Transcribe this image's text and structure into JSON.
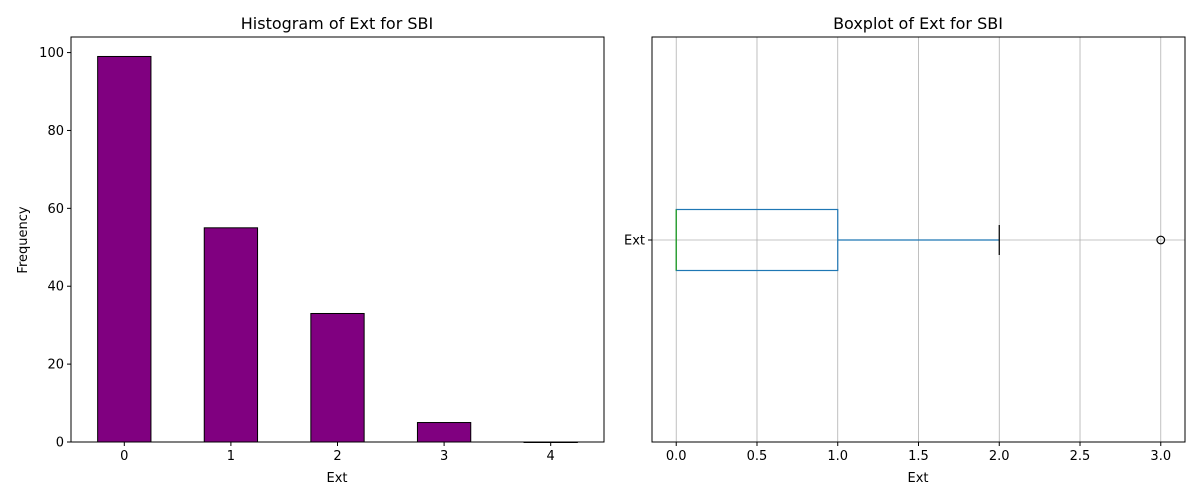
{
  "chart_data": [
    {
      "type": "bar",
      "title": "Histogram of Ext for SBI",
      "xlabel": "Ext",
      "ylabel": "Frequency",
      "categories": [
        "0",
        "1",
        "2",
        "3",
        "4"
      ],
      "values": [
        99,
        55,
        33,
        5,
        0
      ],
      "ylim": [
        0,
        104
      ],
      "yticks": [
        0,
        20,
        40,
        60,
        80,
        100
      ],
      "bar_color": "#800080",
      "edge_color": "#000000",
      "grid": false
    },
    {
      "type": "boxplot",
      "title": "Boxplot of Ext for SBI",
      "xlabel": "Ext",
      "ylabel": "",
      "series_label": "Ext",
      "box": {
        "min": 0.0,
        "q1": 0.0,
        "median": 0.0,
        "q3": 1.0,
        "max": 2.0,
        "outliers": [
          3.0
        ]
      },
      "xlim": [
        -0.15,
        3.15
      ],
      "xticks": [
        0.0,
        0.5,
        1.0,
        1.5,
        2.0,
        2.5,
        3.0
      ],
      "xtick_labels": [
        "0.0",
        "0.5",
        "1.0",
        "1.5",
        "2.0",
        "2.5",
        "3.0"
      ],
      "box_color": "#1f77b4",
      "median_color": "#2ca02c",
      "whisker_cap_color": "#000000",
      "grid": true
    }
  ]
}
